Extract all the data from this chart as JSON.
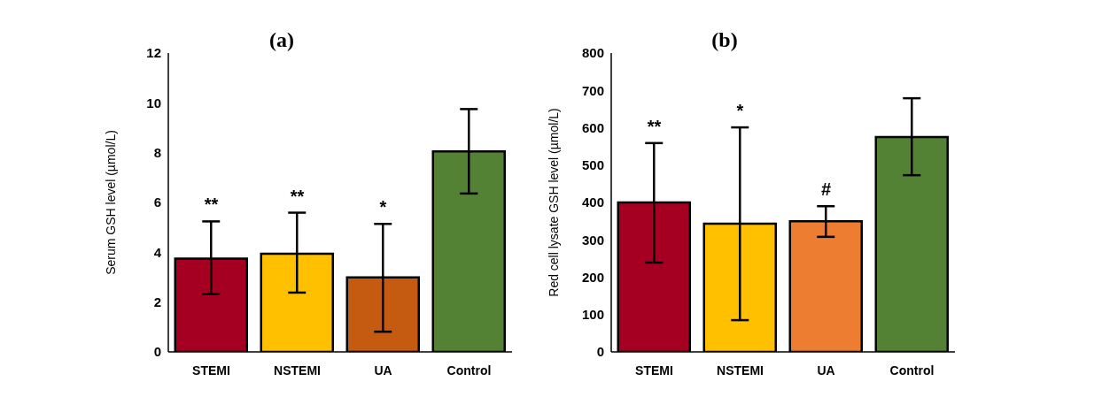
{
  "chart_data": [
    {
      "type": "bar",
      "title": "(a)",
      "ylabel": "Serum GSH level (µmol/L)",
      "categories": [
        "STEMI",
        "NSTEMI",
        "UA",
        "Control"
      ],
      "values": [
        3.75,
        3.94,
        2.99,
        8.05
      ],
      "colors": [
        "#a50021",
        "#ffc000",
        "#c55a11",
        "#548235"
      ],
      "errors": [
        [
          2.33,
          5.24
        ],
        [
          2.38,
          5.59
        ],
        [
          0.81,
          5.14
        ],
        [
          6.36,
          9.75
        ]
      ],
      "ylim": [
        0,
        12
      ],
      "yticks": [
        0,
        2,
        4,
        6,
        8,
        10,
        12
      ],
      "grid": false,
      "legend": false,
      "annotations": [
        "**",
        "**",
        "*"
      ]
    },
    {
      "type": "bar",
      "title": "(b)",
      "ylabel": "Red cell lysate GSH level (µmol/L)",
      "categories": [
        "STEMI",
        "NSTEMI",
        "UA",
        "Control"
      ],
      "values": [
        400,
        343,
        350,
        575
      ],
      "colors": [
        "#a50021",
        "#ffc000",
        "#ed7d31",
        "#548235"
      ],
      "errors": [
        [
          239,
          559
        ],
        [
          85,
          601
        ],
        [
          308,
          390
        ],
        [
          473,
          679
        ]
      ],
      "ylim": [
        0,
        800
      ],
      "yticks": [
        0,
        100,
        200,
        300,
        400,
        500,
        600,
        700,
        800
      ],
      "grid": false,
      "legend": false,
      "annotations": [
        "**",
        "*",
        "#"
      ]
    }
  ]
}
